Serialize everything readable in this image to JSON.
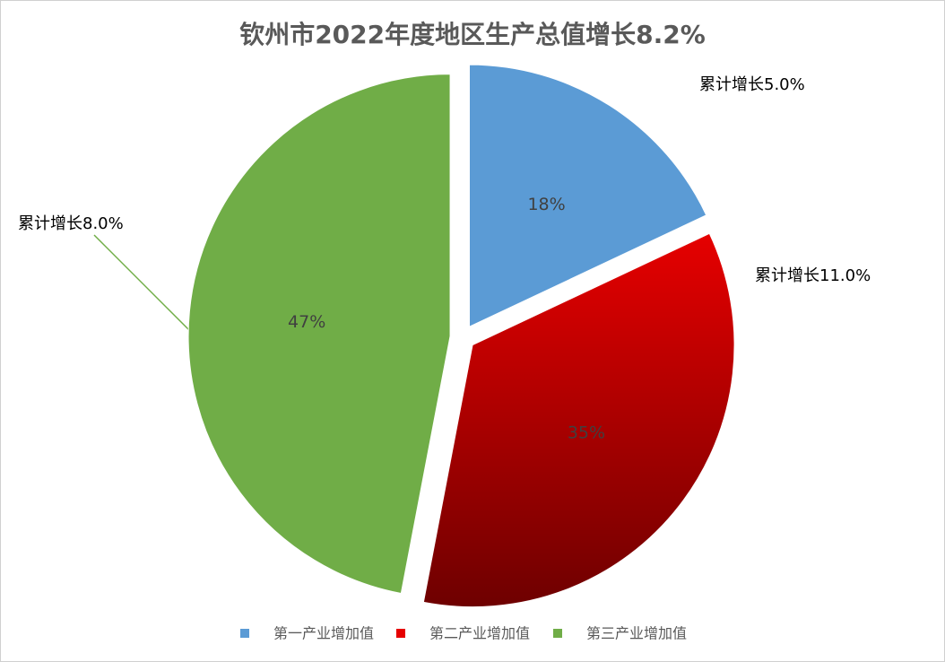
{
  "chart_data": {
    "type": "pie",
    "title": "钦州市2022年度地区生产总值增长8.2%",
    "categories": [
      "第一产业增加值",
      "第二产业增加值",
      "第三产业增加值"
    ],
    "values": [
      18,
      35,
      47
    ],
    "value_labels": [
      "18%",
      "35%",
      "47%"
    ],
    "colors": [
      "#5b9bd5",
      "#e60000",
      "#70ad47"
    ],
    "annotations": [
      "累计增长5.0%",
      "累计增长11.0%",
      "累计增长8.0%"
    ],
    "legend": "bottom"
  }
}
